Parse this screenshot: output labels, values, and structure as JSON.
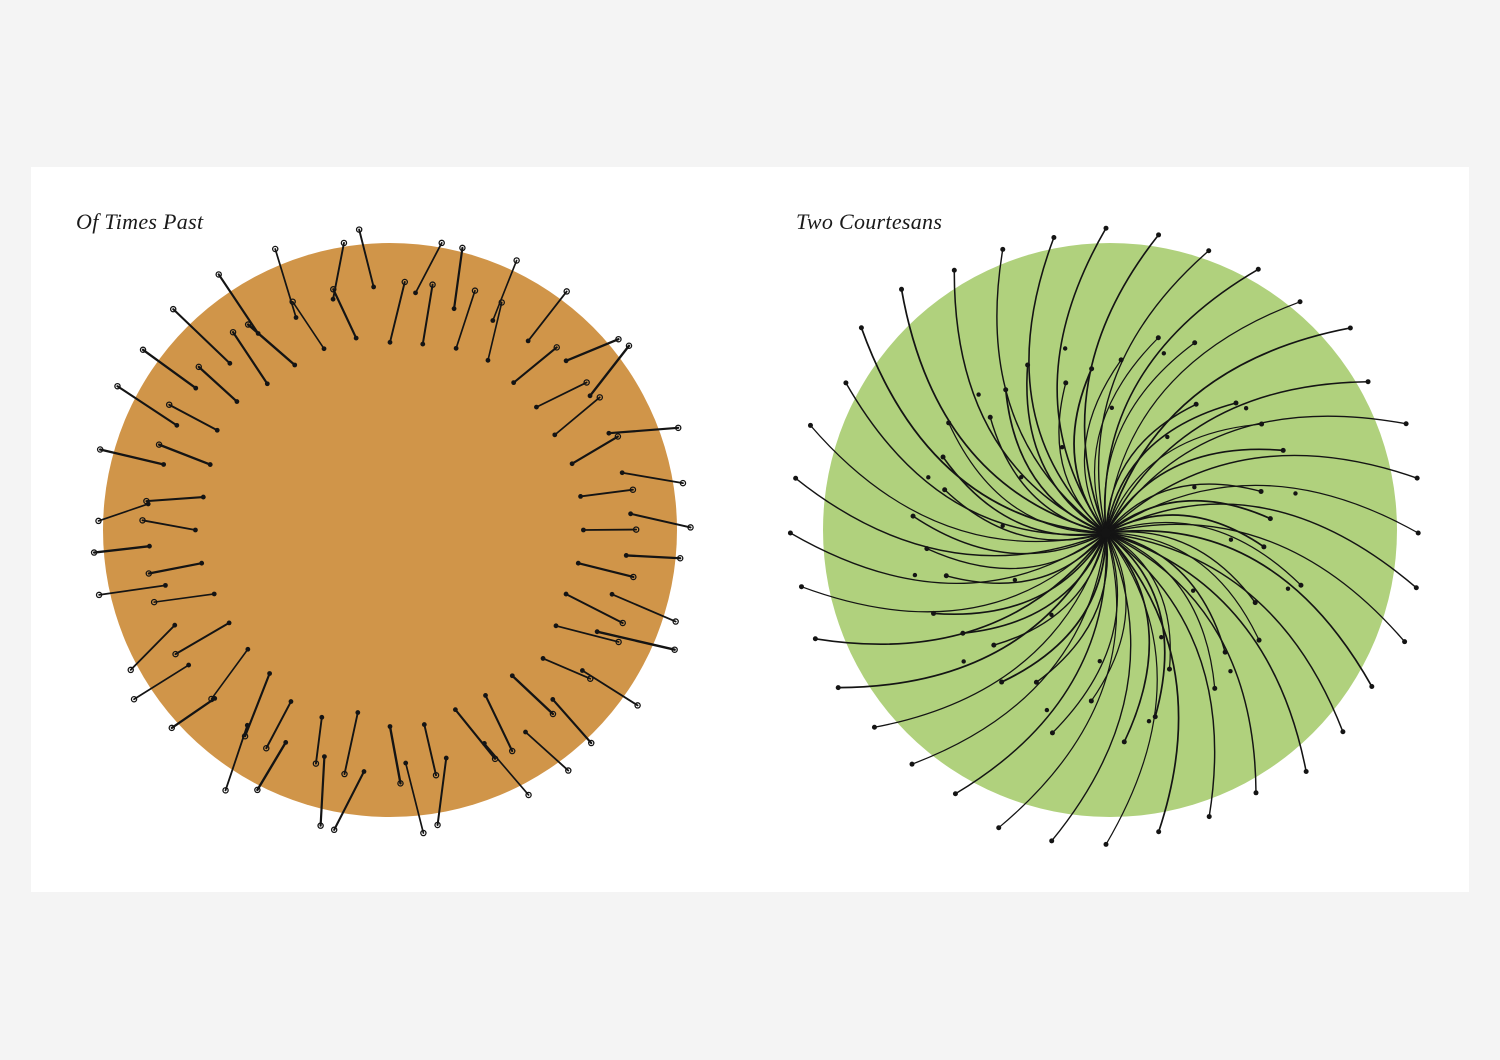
{
  "artworks": [
    {
      "title": "Of Times Past",
      "disc_color": "#d09549",
      "pattern": "radial-gap",
      "stroke_count": 72
    },
    {
      "title": "Two Courtesans",
      "disc_color": "#b0d17d",
      "pattern": "spiral-converging",
      "stroke_count": 72
    }
  ],
  "colors": {
    "background": "#f4f4f4",
    "sheet": "#ffffff",
    "ink": "#141414"
  }
}
